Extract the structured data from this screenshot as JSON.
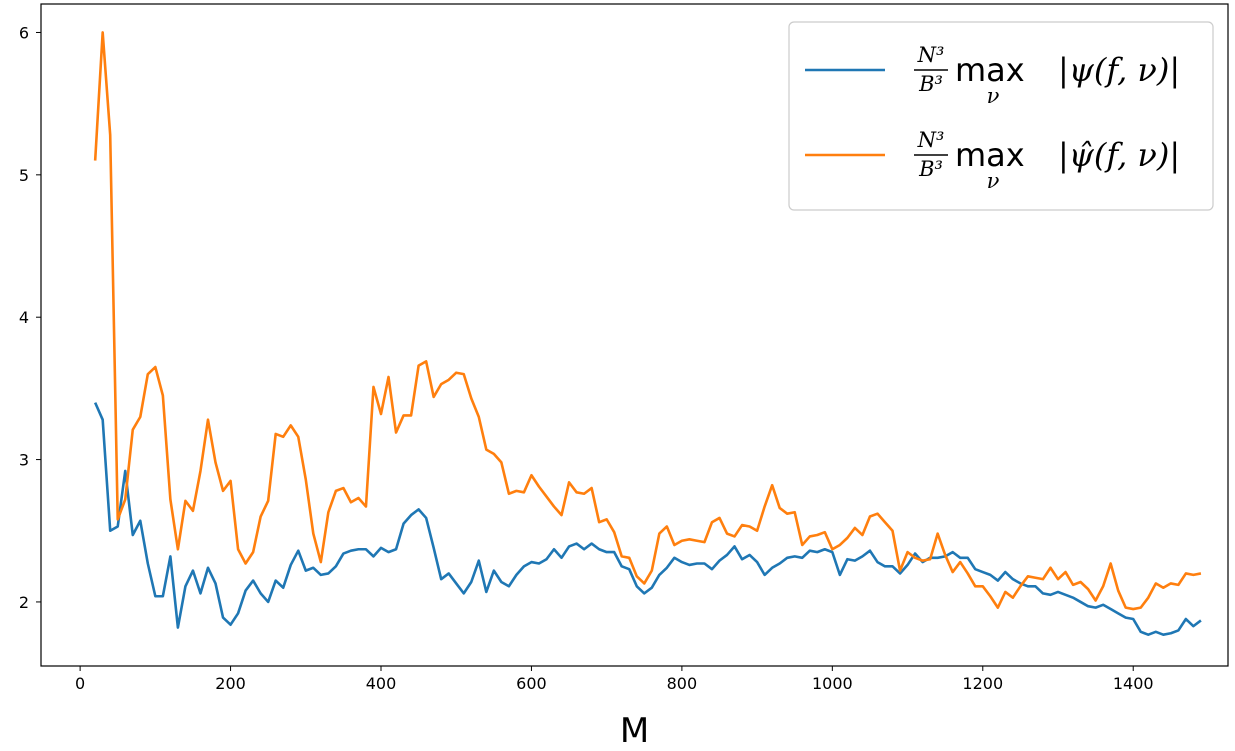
{
  "chart_data": {
    "type": "line",
    "xlabel": "M",
    "ylabel": "",
    "xlim": [
      -52,
      1526
    ],
    "ylim": [
      1.55,
      6.2
    ],
    "xticks": [
      0,
      200,
      400,
      600,
      800,
      1000,
      1200,
      1400
    ],
    "yticks": [
      2,
      3,
      4,
      5,
      6
    ],
    "xtick_labels": [
      "0",
      "200",
      "400",
      "600",
      "800",
      "1000",
      "1200",
      "1400"
    ],
    "ytick_labels": [
      "2",
      "3",
      "4",
      "5",
      "6"
    ],
    "grid": false,
    "legend_position": "top-right",
    "x": [
      20,
      30,
      40,
      50,
      60,
      70,
      80,
      90,
      100,
      110,
      120,
      130,
      140,
      150,
      160,
      170,
      180,
      190,
      200,
      210,
      220,
      230,
      240,
      250,
      260,
      270,
      280,
      290,
      300,
      310,
      320,
      330,
      340,
      350,
      360,
      370,
      380,
      390,
      400,
      410,
      420,
      430,
      440,
      450,
      460,
      470,
      480,
      490,
      500,
      510,
      520,
      530,
      540,
      550,
      560,
      570,
      580,
      590,
      600,
      610,
      620,
      630,
      640,
      650,
      660,
      670,
      680,
      690,
      700,
      710,
      720,
      730,
      740,
      750,
      760,
      770,
      780,
      790,
      800,
      810,
      820,
      830,
      840,
      850,
      860,
      870,
      880,
      890,
      900,
      910,
      920,
      930,
      940,
      950,
      960,
      970,
      980,
      990,
      1000,
      1010,
      1020,
      1030,
      1040,
      1050,
      1060,
      1070,
      1080,
      1090,
      1100,
      1110,
      1120,
      1130,
      1140,
      1150,
      1160,
      1170,
      1180,
      1190,
      1200,
      1210,
      1220,
      1230,
      1240,
      1250,
      1260,
      1270,
      1280,
      1290,
      1300,
      1310,
      1320,
      1330,
      1340,
      1350,
      1360,
      1370,
      1380,
      1390,
      1400,
      1410,
      1420,
      1430,
      1440,
      1450,
      1460,
      1470,
      1480,
      1490
    ],
    "series": [
      {
        "name": "$\\frac{N^3}{B^3}\\max_{\\nu}\\ |\\psi(f,\\nu)|$",
        "color": "#1f77b4",
        "values": [
          3.4,
          3.28,
          2.5,
          2.53,
          2.92,
          2.47,
          2.57,
          2.27,
          2.04,
          2.04,
          2.32,
          1.82,
          2.11,
          2.22,
          2.06,
          2.24,
          2.13,
          1.89,
          1.84,
          1.92,
          2.08,
          2.15,
          2.06,
          2.0,
          2.15,
          2.1,
          2.26,
          2.36,
          2.22,
          2.24,
          2.19,
          2.2,
          2.25,
          2.34,
          2.36,
          2.37,
          2.37,
          2.32,
          2.38,
          2.35,
          2.37,
          2.55,
          2.61,
          2.65,
          2.59,
          2.38,
          2.16,
          2.2,
          2.13,
          2.06,
          2.14,
          2.29,
          2.07,
          2.22,
          2.14,
          2.11,
          2.19,
          2.25,
          2.28,
          2.27,
          2.3,
          2.37,
          2.31,
          2.39,
          2.41,
          2.37,
          2.41,
          2.37,
          2.35,
          2.35,
          2.25,
          2.23,
          2.11,
          2.06,
          2.1,
          2.19,
          2.24,
          2.31,
          2.28,
          2.26,
          2.27,
          2.27,
          2.23,
          2.29,
          2.33,
          2.39,
          2.3,
          2.33,
          2.28,
          2.19,
          2.24,
          2.27,
          2.31,
          2.32,
          2.31,
          2.36,
          2.35,
          2.37,
          2.35,
          2.19,
          2.3,
          2.29,
          2.32,
          2.36,
          2.28,
          2.25,
          2.25,
          2.2,
          2.26,
          2.34,
          2.28,
          2.31,
          2.31,
          2.32,
          2.35,
          2.31,
          2.31,
          2.23,
          2.21,
          2.19,
          2.15,
          2.21,
          2.16,
          2.13,
          2.11,
          2.11,
          2.06,
          2.05,
          2.07,
          2.05,
          2.03,
          2.0,
          1.97,
          1.96,
          1.98,
          1.95,
          1.92,
          1.89,
          1.88,
          1.79,
          1.77,
          1.79,
          1.77,
          1.78,
          1.8,
          1.88,
          1.83,
          1.87
        ]
      },
      {
        "name": "$\\frac{N^3}{B^3}\\max_{\\nu}\\ |\\hat{\\psi}(f,\\nu)|$",
        "color": "#ff7f0e",
        "values": [
          5.1,
          6.0,
          5.28,
          2.58,
          2.72,
          3.21,
          3.3,
          3.6,
          3.65,
          3.45,
          2.72,
          2.37,
          2.71,
          2.64,
          2.92,
          3.28,
          2.98,
          2.78,
          2.85,
          2.37,
          2.27,
          2.35,
          2.6,
          2.71,
          3.18,
          3.16,
          3.24,
          3.16,
          2.86,
          2.48,
          2.28,
          2.63,
          2.78,
          2.8,
          2.7,
          2.73,
          2.67,
          3.51,
          3.32,
          3.58,
          3.19,
          3.31,
          3.31,
          3.66,
          3.69,
          3.44,
          3.53,
          3.56,
          3.61,
          3.6,
          3.43,
          3.3,
          3.07,
          3.04,
          2.98,
          2.76,
          2.78,
          2.77,
          2.89,
          2.81,
          2.74,
          2.67,
          2.61,
          2.84,
          2.77,
          2.76,
          2.8,
          2.56,
          2.58,
          2.49,
          2.32,
          2.31,
          2.18,
          2.13,
          2.22,
          2.48,
          2.53,
          2.4,
          2.43,
          2.44,
          2.43,
          2.42,
          2.56,
          2.59,
          2.48,
          2.46,
          2.54,
          2.53,
          2.5,
          2.67,
          2.82,
          2.66,
          2.62,
          2.63,
          2.4,
          2.46,
          2.47,
          2.49,
          2.37,
          2.4,
          2.45,
          2.52,
          2.47,
          2.6,
          2.62,
          2.56,
          2.5,
          2.22,
          2.35,
          2.31,
          2.29,
          2.3,
          2.48,
          2.33,
          2.21,
          2.28,
          2.2,
          2.11,
          2.11,
          2.04,
          1.96,
          2.07,
          2.03,
          2.11,
          2.18,
          2.17,
          2.16,
          2.24,
          2.16,
          2.21,
          2.12,
          2.14,
          2.09,
          2.01,
          2.11,
          2.27,
          2.08,
          1.96,
          1.95,
          1.96,
          2.03,
          2.13,
          2.1,
          2.13,
          2.12,
          2.2,
          2.19,
          2.2
        ]
      }
    ]
  }
}
